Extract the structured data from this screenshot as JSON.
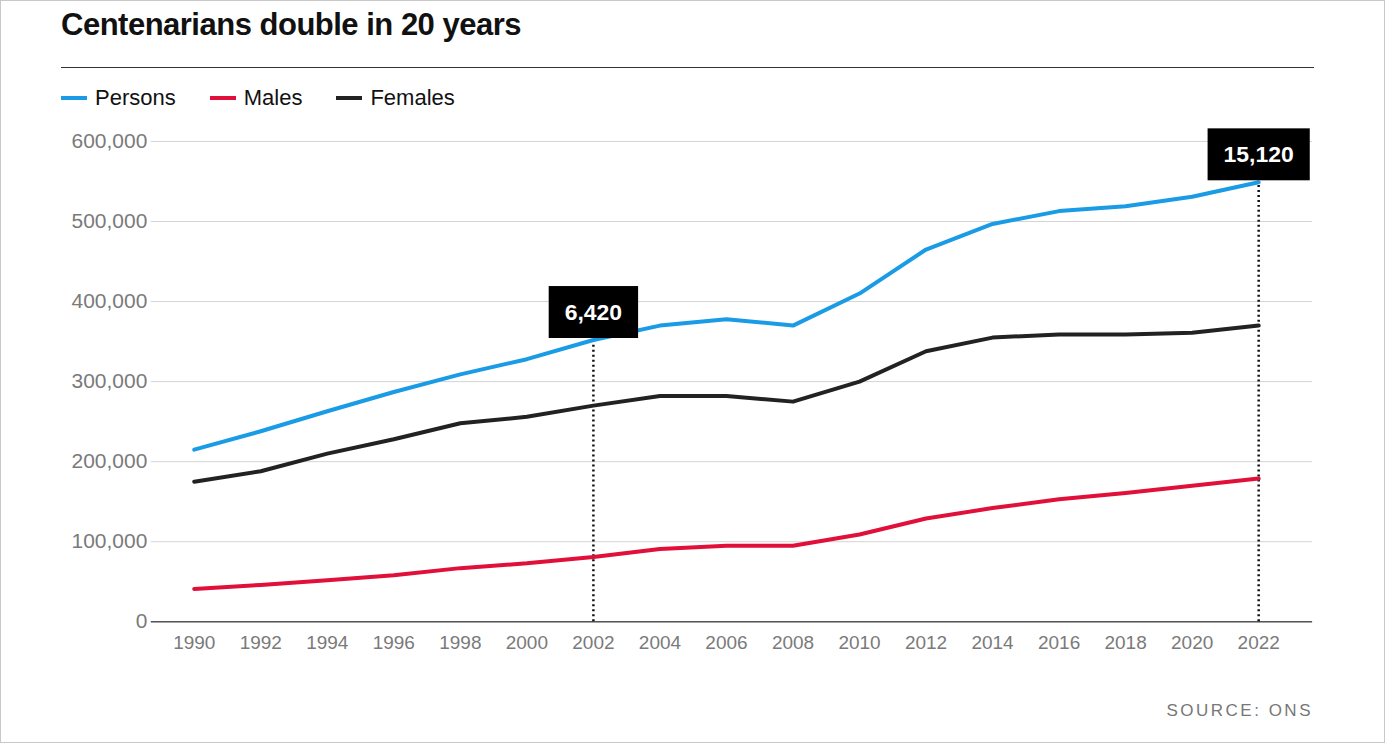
{
  "chart_data": {
    "type": "line",
    "title": "Centenarians double in 20 years",
    "x": [
      1990,
      1992,
      1994,
      1996,
      1998,
      2000,
      2002,
      2004,
      2006,
      2008,
      2010,
      2012,
      2014,
      2016,
      2018,
      2020,
      2022
    ],
    "series": [
      {
        "name": "Persons",
        "color": "#1a9be6",
        "values": [
          215000,
          238000,
          263000,
          287000,
          309000,
          328000,
          352000,
          370000,
          378000,
          370000,
          410000,
          465000,
          497000,
          513000,
          519000,
          531000,
          549000
        ]
      },
      {
        "name": "Males",
        "color": "#e0103a",
        "values": [
          41000,
          46000,
          52000,
          58000,
          67000,
          73000,
          81000,
          91000,
          95000,
          95000,
          109000,
          129000,
          142000,
          153000,
          161000,
          170000,
          179000
        ]
      },
      {
        "name": "Females",
        "color": "#222222",
        "values": [
          175000,
          188000,
          210000,
          228000,
          248000,
          256000,
          270000,
          282000,
          282000,
          275000,
          300000,
          338000,
          355000,
          359000,
          359000,
          361000,
          370000
        ]
      }
    ],
    "xlim": [
      1990,
      2022
    ],
    "xticks": [
      1990,
      1992,
      1994,
      1996,
      1998,
      2000,
      2002,
      2004,
      2006,
      2008,
      2010,
      2012,
      2014,
      2016,
      2018,
      2020,
      2022
    ],
    "ylim": [
      0,
      600000
    ],
    "yticks": [
      0,
      {
        "value": 100000,
        "label": "100,000"
      },
      {
        "value": 200000,
        "label": "200,000"
      },
      {
        "value": 300000,
        "label": "300,000"
      },
      {
        "value": 400000,
        "label": "400,000"
      },
      {
        "value": 500000,
        "label": "500,000"
      },
      {
        "value": 600000,
        "label": "600,000"
      }
    ],
    "grid": true,
    "legend": "top-left",
    "annotations": [
      {
        "x": 2002,
        "label": "6,420"
      },
      {
        "x": 2022,
        "label": "15,120"
      }
    ],
    "source": "SOURCE: ONS"
  }
}
